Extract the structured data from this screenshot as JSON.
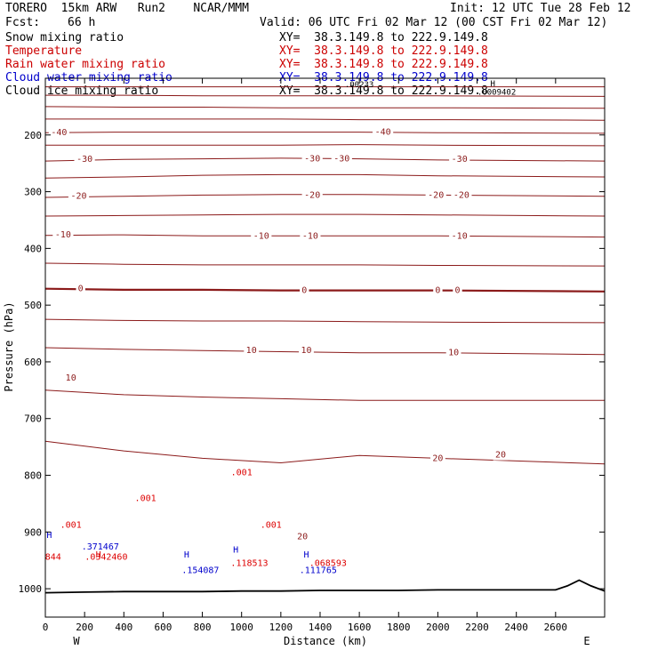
{
  "header": {
    "model": "TORERO  15km ARW   Run2    NCAR/MMM",
    "init": "Init: 12 UTC Tue 28 Feb 12",
    "fcst_label": "Fcst:",
    "fcst_value": "66 h",
    "valid": "Valid: 06 UTC Fri 02 Mar 12 (00 CST Fri 02 Mar 12)"
  },
  "legend": [
    {
      "name": "Snow mixing ratio",
      "color": "#000000",
      "xy": "XY=  38.3.149.8 to 222.9.149.8"
    },
    {
      "name": "Temperature",
      "color": "#cc0000",
      "xy": "XY=  38.3.149.8 to 222.9.149.8"
    },
    {
      "name": "Rain water mixing ratio",
      "color": "#cc0000",
      "xy": "XY=  38.3.149.8 to 222.9.149.8"
    },
    {
      "name": "Cloud water mixing ratio",
      "color": "#0000cc",
      "xy": "XY=  38.3.149.8 to 222.9.149.8"
    },
    {
      "name": "Cloud ice mixing ratio",
      "color": "#000000",
      "xy": "XY=  38.3.149.8 to 222.9.149.8"
    }
  ],
  "chart_data": {
    "type": "line",
    "xlabel": "Distance (km)",
    "ylabel": "Pressure (hPa)",
    "xlim": [
      0,
      2850
    ],
    "ylim": [
      1050,
      100
    ],
    "x_ticks": [
      0,
      200,
      400,
      600,
      800,
      1000,
      1200,
      1400,
      1600,
      1800,
      2000,
      2200,
      2400,
      2600
    ],
    "y_ticks": [
      200,
      300,
      400,
      500,
      600,
      700,
      800,
      900,
      1000
    ],
    "x_endpoints": {
      "left": "W",
      "right": "E"
    },
    "colors": {
      "temperature": "#8b1a1a",
      "rain": "#dd0000",
      "cloud_water": "#0000cc",
      "ground": "#000000"
    },
    "isotherms": [
      {
        "value": -60,
        "y": [
          115,
          115,
          115,
          115,
          115,
          115,
          115
        ]
      },
      {
        "value": -55,
        "y": [
          130,
          130,
          131,
          131,
          131,
          131,
          132
        ]
      },
      {
        "value": -50,
        "y": [
          150,
          151,
          151,
          152,
          152,
          152,
          153
        ]
      },
      {
        "value": -45,
        "y": [
          172,
          172,
          172,
          172,
          173,
          173,
          174
        ]
      },
      {
        "value": -40,
        "y": [
          196,
          195,
          195,
          195,
          195,
          196,
          197
        ]
      },
      {
        "value": -35,
        "y": [
          218,
          218,
          218,
          218,
          217,
          218,
          219
        ]
      },
      {
        "value": -30,
        "y": [
          246,
          243,
          242,
          241,
          242,
          244,
          246
        ]
      },
      {
        "value": -25,
        "y": [
          276,
          274,
          271,
          270,
          270,
          272,
          274
        ]
      },
      {
        "value": -20,
        "y": [
          310,
          308,
          306,
          305,
          305,
          306,
          308
        ]
      },
      {
        "value": -15,
        "y": [
          343,
          342,
          341,
          340,
          340,
          341,
          343
        ]
      },
      {
        "value": -10,
        "y": [
          377,
          376,
          378,
          378,
          378,
          378,
          380
        ]
      },
      {
        "value": -5,
        "y": [
          426,
          428,
          429,
          429,
          429,
          430,
          431
        ]
      },
      {
        "value": 0,
        "y": [
          471,
          473,
          473,
          474,
          474,
          474,
          476
        ]
      },
      {
        "value": 5,
        "y": [
          525,
          527,
          528,
          528,
          529,
          530,
          531
        ]
      },
      {
        "value": 10,
        "y": [
          575,
          578,
          580,
          582,
          584,
          584,
          587
        ]
      },
      {
        "value": 15,
        "y": [
          650,
          658,
          662,
          665,
          668,
          668,
          668
        ]
      },
      {
        "value": 20,
        "y": [
          740,
          757,
          770,
          778,
          765,
          770,
          780
        ]
      }
    ],
    "isotherm_x": [
      0,
      400,
      800,
      1200,
      1600,
      2000,
      2850
    ],
    "isotherm_labels": [
      {
        "text": "-40",
        "x": 70,
        "p": 196
      },
      {
        "text": "-40",
        "x": 1720,
        "p": 195
      },
      {
        "text": "-30",
        "x": 200,
        "p": 243
      },
      {
        "text": "-30",
        "x": 1360,
        "p": 242
      },
      {
        "text": "-30",
        "x": 1510,
        "p": 242
      },
      {
        "text": "-30",
        "x": 2110,
        "p": 243
      },
      {
        "text": "-20",
        "x": 170,
        "p": 308
      },
      {
        "text": "-20",
        "x": 1360,
        "p": 306
      },
      {
        "text": "-20",
        "x": 1990,
        "p": 306
      },
      {
        "text": "-20",
        "x": 2120,
        "p": 306
      },
      {
        "text": "-10",
        "x": 90,
        "p": 376
      },
      {
        "text": "-10",
        "x": 1100,
        "p": 378
      },
      {
        "text": "-10",
        "x": 1350,
        "p": 378
      },
      {
        "text": "-10",
        "x": 2110,
        "p": 378
      },
      {
        "text": "0",
        "x": 180,
        "p": 471
      },
      {
        "text": "0",
        "x": 1320,
        "p": 474
      },
      {
        "text": "0",
        "x": 2000,
        "p": 474
      },
      {
        "text": "0",
        "x": 2100,
        "p": 474
      },
      {
        "text": "10",
        "x": 1050,
        "p": 580
      },
      {
        "text": "10",
        "x": 1330,
        "p": 580
      },
      {
        "text": "10",
        "x": 2080,
        "p": 584
      },
      {
        "text": "10",
        "x": 130,
        "p": 628
      },
      {
        "text": "20",
        "x": 2000,
        "p": 770
      },
      {
        "text": "20",
        "x": 2320,
        "p": 764
      },
      {
        "text": "20",
        "x": 1310,
        "p": 908
      }
    ],
    "ground_pressure": [
      1007,
      1006,
      1005,
      1005,
      1005,
      1004,
      1004,
      1003,
      1003,
      1003,
      1002,
      1002,
      1002,
      1002,
      995,
      985,
      995,
      1004
    ],
    "ground_x": [
      0,
      200,
      400,
      600,
      800,
      1000,
      1200,
      1400,
      1600,
      1800,
      2000,
      2200,
      2400,
      2600,
      2660,
      2720,
      2780,
      2850
    ],
    "rain_labels": [
      {
        "text": ".001",
        "x": 130,
        "p": 888
      },
      {
        "text": ".001",
        "x": 510,
        "p": 841
      },
      {
        "text": ".001",
        "x": 1000,
        "p": 795
      },
      {
        "text": ".001",
        "x": 1150,
        "p": 888
      },
      {
        "text": ".0342460",
        "x": 310,
        "p": 944
      },
      {
        "text": ".118513",
        "x": 1040,
        "p": 955
      },
      {
        "text": ".068593",
        "x": 1440,
        "p": 955
      },
      {
        "text": "844",
        "x": 40,
        "p": 944
      },
      {
        "text": "H",
        "x": 270,
        "p": 940
      }
    ],
    "cloud_labels": [
      {
        "text": ".371467",
        "x": 280,
        "p": 926
      },
      {
        "text": ".154087",
        "x": 790,
        "p": 968
      },
      {
        "text": ".111765",
        "x": 1390,
        "p": 968
      },
      {
        "text": "H",
        "x": 720,
        "p": 940
      },
      {
        "text": "H",
        "x": 1330,
        "p": 940
      },
      {
        "text": "H",
        "x": 970,
        "p": 932
      },
      {
        "text": "H",
        "x": 20,
        "p": 906
      }
    ],
    "snow_labels": [
      {
        "text": ".00233",
        "x": 1600,
        "p": 112
      },
      {
        "text": ".0009402",
        "x": 2300,
        "p": 125
      },
      {
        "text": "H",
        "x": 2280,
        "p": 110
      }
    ]
  }
}
